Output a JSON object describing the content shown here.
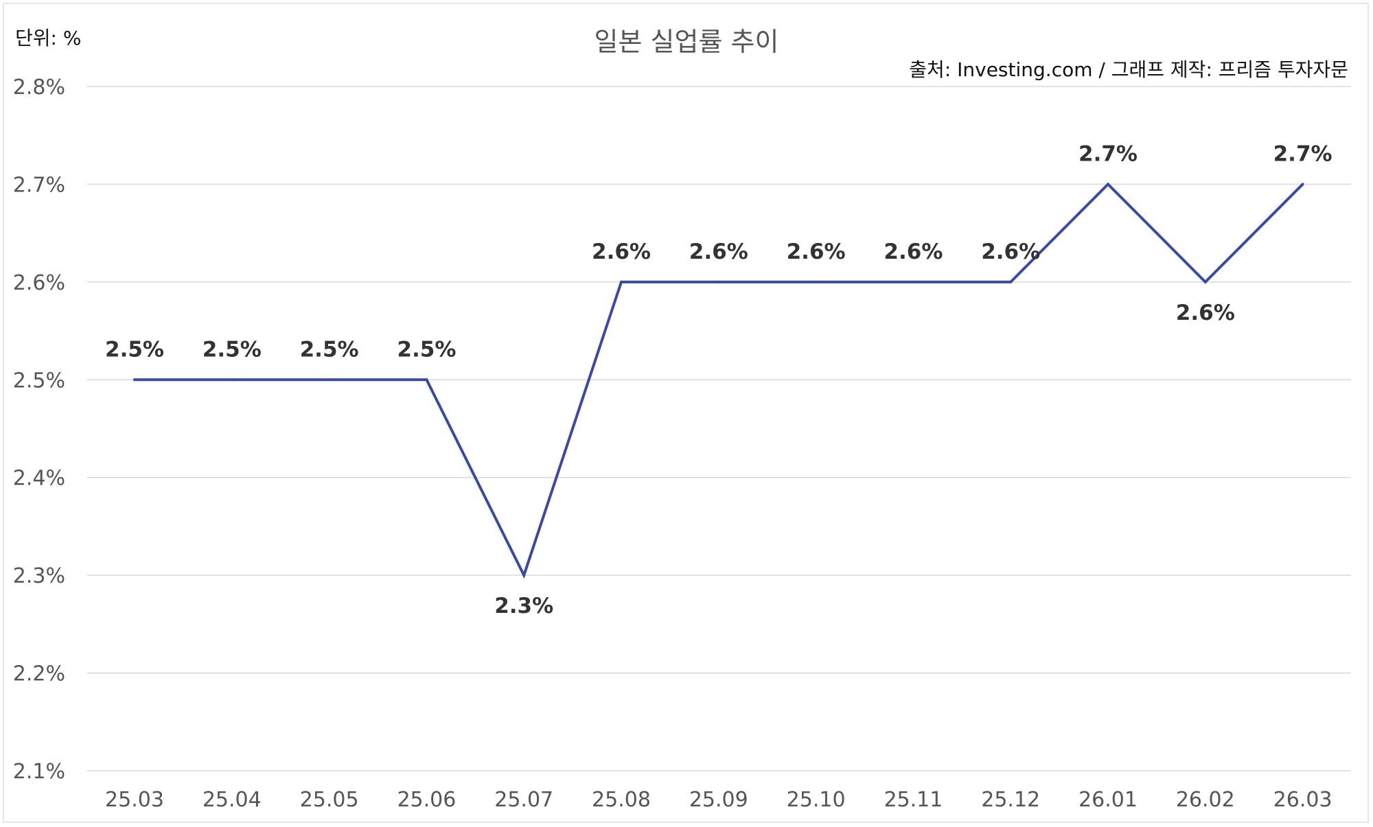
{
  "unit_label": "단위: %",
  "source_label": "출처: Investing.com / 그래프 제작: 프리즘 투자자문",
  "chart_data": {
    "type": "line",
    "title": "일본 실업률 추이",
    "xlabel": "",
    "ylabel": "",
    "categories": [
      "25.03",
      "25.04",
      "25.05",
      "25.06",
      "25.07",
      "25.08",
      "25.09",
      "25.10",
      "25.11",
      "25.12",
      "26.01",
      "26.02",
      "26.03"
    ],
    "series": [
      {
        "values": [
          2.5,
          2.5,
          2.5,
          2.5,
          2.3,
          2.6,
          2.6,
          2.6,
          2.6,
          2.6,
          2.7,
          2.6,
          2.7
        ],
        "color": "#3a4aa3"
      }
    ],
    "data_labels": [
      "2.5%",
      "2.5%",
      "2.5%",
      "2.5%",
      "2.3%",
      "2.6%",
      "2.6%",
      "2.6%",
      "2.6%",
      "2.6%",
      "2.7%",
      "2.6%",
      "2.7%"
    ],
    "ylim": [
      2.1,
      2.8
    ],
    "y_ticks": [
      2.1,
      2.2,
      2.3,
      2.4,
      2.5,
      2.6,
      2.7,
      2.8
    ],
    "y_tick_labels": [
      "2.1%",
      "2.2%",
      "2.3%",
      "2.4%",
      "2.5%",
      "2.6%",
      "2.7%",
      "2.8%"
    ],
    "grid": true,
    "grid_color": "#d9d9d9",
    "legend": "none"
  }
}
